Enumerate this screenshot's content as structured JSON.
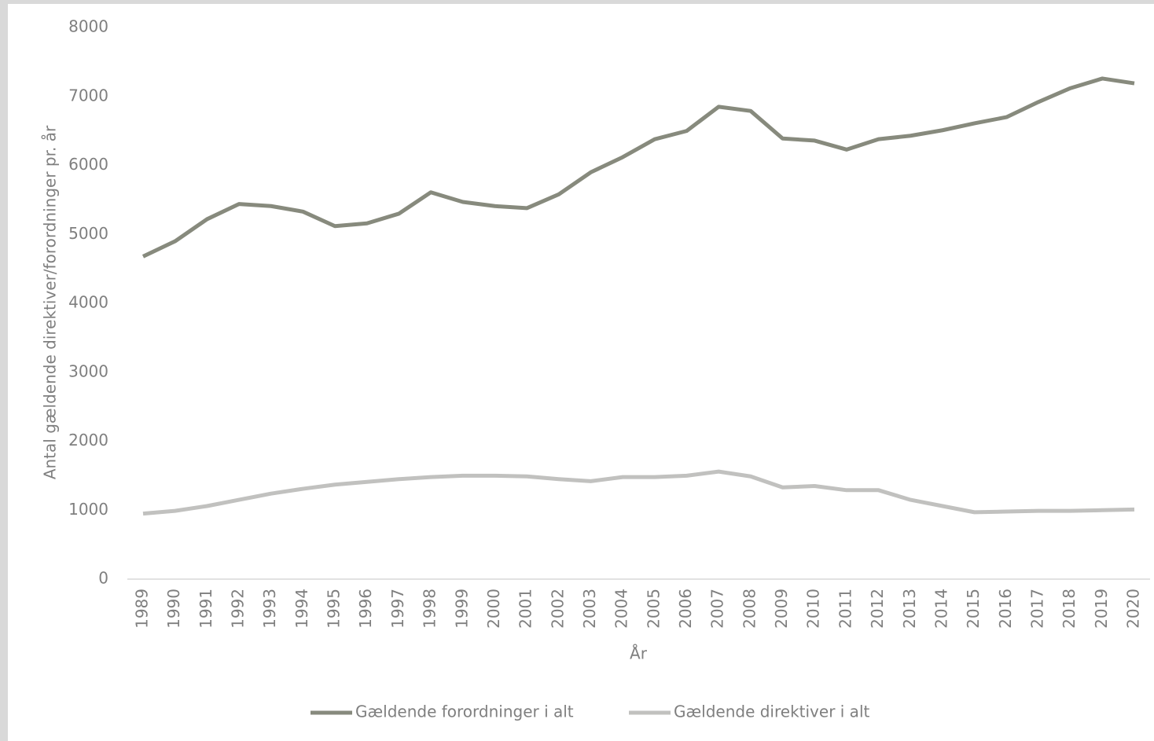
{
  "chart_data": {
    "type": "line",
    "y_label": "Antal gældende direktiver/forordninger pr. år",
    "x_label": "År",
    "categories": [
      "1989",
      "1990",
      "1991",
      "1992",
      "1993",
      "1994",
      "1995",
      "1996",
      "1997",
      "1998",
      "1999",
      "2000",
      "2001",
      "2002",
      "2003",
      "2004",
      "2005",
      "2006",
      "2007",
      "2008",
      "2009",
      "2010",
      "2011",
      "2012",
      "2013",
      "2014",
      "2015",
      "2016",
      "2017",
      "2018",
      "2019",
      "2020"
    ],
    "series": [
      {
        "name": "Gældende forordninger i alt",
        "color": "#878a7d",
        "values": [
          4680,
          4900,
          5220,
          5440,
          5410,
          5330,
          5120,
          5160,
          5300,
          5610,
          5470,
          5410,
          5380,
          5580,
          5900,
          6120,
          6380,
          6500,
          6850,
          6790,
          6390,
          6360,
          6230,
          6380,
          6430,
          6510,
          6610,
          6700,
          6920,
          7120,
          7260,
          7190
        ]
      },
      {
        "name": "Gældende direktiver i alt",
        "color": "#c1c1bf",
        "values": [
          950,
          990,
          1060,
          1150,
          1240,
          1310,
          1370,
          1410,
          1450,
          1480,
          1500,
          1500,
          1490,
          1450,
          1420,
          1480,
          1480,
          1500,
          1560,
          1490,
          1330,
          1350,
          1290,
          1290,
          1150,
          1060,
          970,
          980,
          990,
          990,
          1000,
          1010
        ]
      }
    ],
    "ylim": [
      0,
      8000
    ],
    "yticks": [
      0,
      1000,
      2000,
      3000,
      4000,
      5000,
      6000,
      7000,
      8000
    ],
    "grid": false,
    "legend": "bottom"
  }
}
